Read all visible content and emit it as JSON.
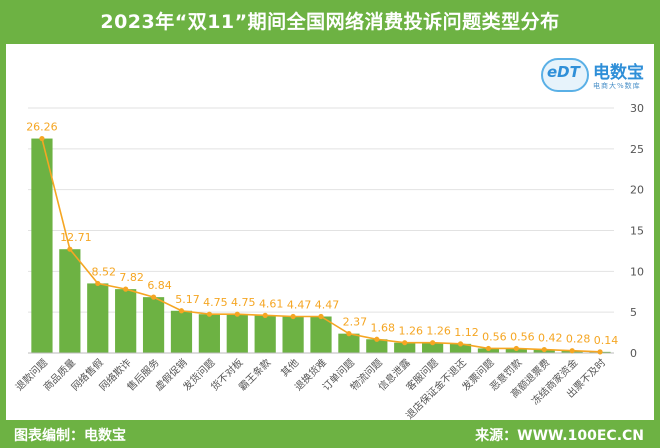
{
  "header": {
    "title": "2023年“双11”期间全国网络消费投诉问题类型分布"
  },
  "footer": {
    "left": "图表编制：电数宝",
    "right": "来源：WWW.100EC.CN"
  },
  "logo": {
    "mark": "eDT",
    "name": "电数宝",
    "sub": "电商大%数库"
  },
  "colors": {
    "bar": "#6db243",
    "line": "#f5a623",
    "label": "#f5a623",
    "frame": "#6db243"
  },
  "chart_data": {
    "type": "bar",
    "title": "2023年“双11”期间全国网络消费投诉问题类型分布",
    "categories": [
      "退款问题",
      "商品质量",
      "网络售假",
      "网络欺诈",
      "售后服务",
      "虚假促销",
      "发货问题",
      "货不对板",
      "霸王条款",
      "其他",
      "退换货难",
      "订单问题",
      "物流问题",
      "信息泄露",
      "客服问题",
      "退店保证金不退还",
      "发票问题",
      "恶意罚款",
      "高额退票费",
      "冻结商家资金",
      "出票不及时"
    ],
    "values": [
      26.26,
      12.71,
      8.52,
      7.82,
      6.84,
      5.17,
      4.75,
      4.75,
      4.61,
      4.47,
      4.47,
      2.37,
      1.68,
      1.26,
      1.26,
      1.12,
      0.56,
      0.56,
      0.42,
      0.28,
      0.14
    ],
    "value_labels": [
      "26.26",
      "12.71",
      "8.52",
      "7.82",
      "6.84",
      "5.17",
      "4.75",
      "4.75",
      "4.61",
      "4.47",
      "4.47",
      "2.37",
      "1.68",
      "1.26",
      "1.26",
      "1.12",
      "0.56",
      "0.56",
      "0.42",
      "0.28",
      "0.14"
    ],
    "overlay": "line",
    "ylim": [
      0,
      30
    ],
    "yticks": [
      "0",
      "5",
      "10",
      "15",
      "20",
      "25",
      "30"
    ],
    "y_axis_side": "right",
    "grid": true,
    "legend": "none",
    "xlabel": "",
    "ylabel": ""
  }
}
